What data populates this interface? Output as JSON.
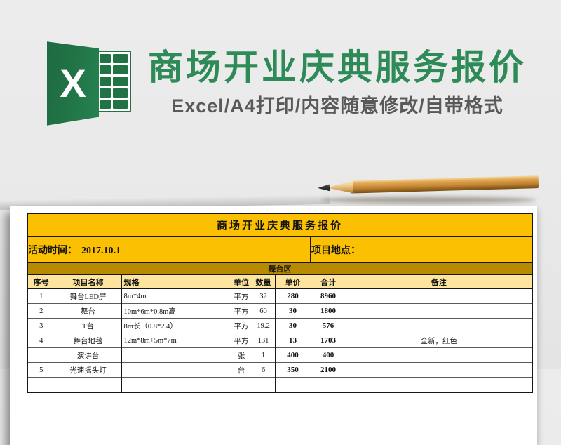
{
  "hero": {
    "logo": {
      "letter": "X"
    },
    "title": "商场开业庆典服务报价",
    "subtitle": "Excel/A4打印/内容随意修改/自带格式"
  },
  "sheet": {
    "title": "商场开业庆典服务报价",
    "info": {
      "time_label": "活动时间：",
      "time_value": "2017.10.1",
      "location_label": "项目地点：",
      "location_value": ""
    },
    "section_label": "舞台区",
    "columns": [
      "序号",
      "项目名称",
      "规格",
      "单位",
      "数量",
      "单价",
      "合计",
      "备注"
    ],
    "rows": [
      {
        "no": "1",
        "name": "舞台LED屏",
        "spec": "8m*4m",
        "unit": "平方",
        "qty": "32",
        "price": "280",
        "total": "8960",
        "remark": ""
      },
      {
        "no": "2",
        "name": "舞台",
        "spec": "10m*6m*0.8m高",
        "unit": "平方",
        "qty": "60",
        "price": "30",
        "total": "1800",
        "remark": ""
      },
      {
        "no": "3",
        "name": "T台",
        "spec": "8m长（0.8*2.4）",
        "unit": "平方",
        "qty": "19.2",
        "price": "30",
        "total": "576",
        "remark": ""
      },
      {
        "no": "4",
        "name": "舞台地毯",
        "spec": "12m*8m+5m*7m",
        "unit": "平方",
        "qty": "131",
        "price": "13",
        "total": "1703",
        "remark": "全新，红色"
      },
      {
        "no": "",
        "name": "演讲台",
        "spec": "",
        "unit": "张",
        "qty": "1",
        "price": "400",
        "total": "400",
        "remark": ""
      },
      {
        "no": "5",
        "name": "光速摇头灯",
        "spec": "",
        "unit": "台",
        "qty": "6",
        "price": "350",
        "total": "2100",
        "remark": ""
      }
    ]
  },
  "colors": {
    "background": "#E9E9E9",
    "title_green": "#2E8B57",
    "subtitle_gray": "#595959",
    "excel_green": "#217346",
    "band_yellow": "#FCC003",
    "section_gold": "#B88A00",
    "header_light": "#FDE5A0",
    "border_dark": "#161616"
  }
}
